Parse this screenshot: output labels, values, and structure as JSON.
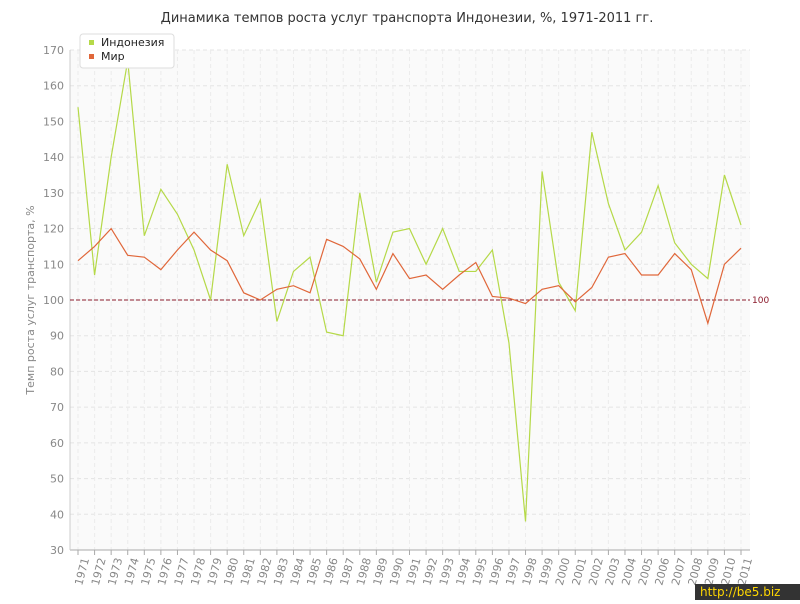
{
  "chart_data": {
    "type": "line",
    "title": "Динамика темпов роста услуг транспорта Индонезии, %, 1971-2011 гг.",
    "y_label": "Темп роста услуг транспорта, %",
    "categories": [
      "1971",
      "1972",
      "1973",
      "1974",
      "1975",
      "1976",
      "1977",
      "1978",
      "1979",
      "1980",
      "1981",
      "1982",
      "1983",
      "1984",
      "1985",
      "1986",
      "1987",
      "1988",
      "1989",
      "1990",
      "1991",
      "1992",
      "1993",
      "1994",
      "1995",
      "1996",
      "1997",
      "1998",
      "1999",
      "2000",
      "2001",
      "2002",
      "2003",
      "2004",
      "2005",
      "2006",
      "2007",
      "2008",
      "2009",
      "2010",
      "2011"
    ],
    "series": [
      {
        "name": "Индонезия",
        "color": "#b5d948",
        "values": [
          154,
          107,
          140,
          167,
          118,
          131,
          124,
          114,
          100,
          138,
          118,
          128,
          94,
          108,
          112,
          91,
          90,
          130,
          105,
          119,
          120,
          110,
          120,
          108,
          108,
          114,
          88,
          38,
          136,
          105,
          97,
          147,
          127,
          114,
          119,
          132,
          116,
          110,
          106,
          135,
          121
        ]
      },
      {
        "name": "Мир",
        "color": "#e0673a",
        "values": [
          111,
          115,
          120,
          112.5,
          112,
          108.5,
          114,
          119,
          114,
          111,
          102,
          100,
          103,
          104,
          102,
          117,
          115,
          111.5,
          103,
          113,
          106,
          107,
          103,
          107,
          110.5,
          101,
          100.5,
          99,
          103,
          104,
          99.5,
          103.5,
          112,
          113,
          107,
          107,
          113,
          108.5,
          93.5,
          110,
          114.5
        ]
      }
    ],
    "ylim": [
      30,
      170
    ],
    "yticks": [
      30,
      40,
      50,
      60,
      70,
      80,
      90,
      100,
      110,
      120,
      130,
      140,
      150,
      160,
      170
    ],
    "grid": true,
    "legend": "top-left",
    "reference_line": {
      "value": 100,
      "color": "#8b1a2b"
    },
    "watermark": "http://be5.biz"
  }
}
